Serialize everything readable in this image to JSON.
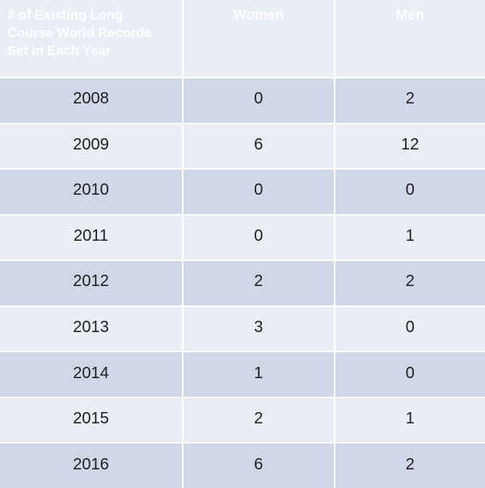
{
  "colors": {
    "header_bg": "#4E81BD",
    "band_dark": "#D0D8E8",
    "band_light": "#E9EDF4",
    "grid_line": "#FFFFFF",
    "header_text": "#FFFFFF",
    "body_text": "#1E1E1E"
  },
  "table": {
    "title": "# of Existing Long Course World Records Set in Each Year",
    "title_lines": [
      "# of Existing Long",
      "Course World Records",
      "Set in Each Year"
    ],
    "columns": {
      "women": "Women",
      "men": "Men"
    },
    "rows": [
      {
        "year": "2008",
        "women": "0",
        "men": "2"
      },
      {
        "year": "2009",
        "women": "6",
        "men": "12"
      },
      {
        "year": "2010",
        "women": "0",
        "men": "0"
      },
      {
        "year": "2011",
        "women": "0",
        "men": "1"
      },
      {
        "year": "2012",
        "women": "2",
        "men": "2"
      },
      {
        "year": "2013",
        "women": "3",
        "men": "0"
      },
      {
        "year": "2014",
        "women": "1",
        "men": "0"
      },
      {
        "year": "2015",
        "women": "2",
        "men": "1"
      },
      {
        "year": "2016",
        "women": "6",
        "men": "2"
      }
    ]
  },
  "chart_data": {
    "type": "table",
    "title": "# of Existing Long Course World Records Set in Each Year",
    "categories": [
      2008,
      2009,
      2010,
      2011,
      2012,
      2013,
      2014,
      2015,
      2016
    ],
    "series": [
      {
        "name": "Women",
        "values": [
          0,
          6,
          0,
          0,
          2,
          3,
          1,
          2,
          6
        ]
      },
      {
        "name": "Men",
        "values": [
          2,
          12,
          0,
          1,
          2,
          0,
          0,
          1,
          2
        ]
      }
    ]
  }
}
